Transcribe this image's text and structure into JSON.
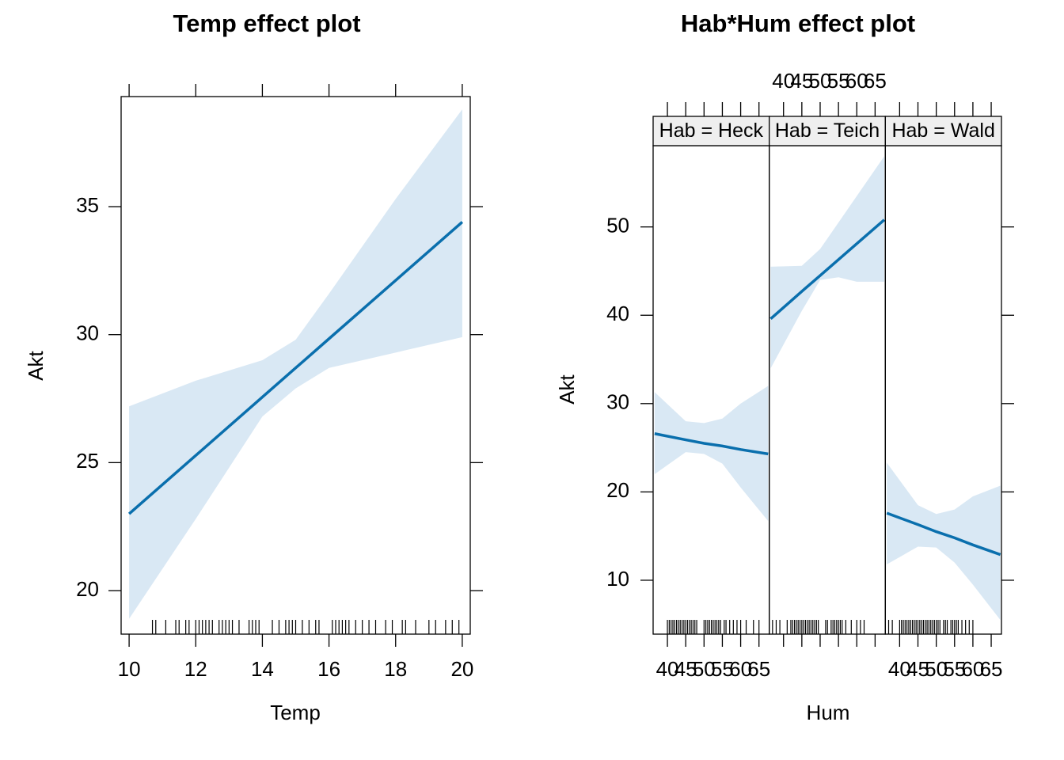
{
  "chart_data": [
    {
      "type": "line",
      "title": "Temp effect plot",
      "x_label": "Temp",
      "y_label": "Akt",
      "x": [
        10,
        12,
        14,
        15,
        16,
        18,
        20
      ],
      "values": [
        23.0,
        25.28,
        27.56,
        28.7,
        29.84,
        32.12,
        34.4
      ],
      "upper": [
        27.2,
        28.2,
        29.0,
        29.8,
        31.6,
        35.3,
        38.8
      ],
      "lower": [
        18.9,
        22.8,
        26.8,
        27.9,
        28.7,
        29.3,
        29.9
      ],
      "rug": [
        10.7,
        10.8,
        11.1,
        11.4,
        11.5,
        11.7,
        11.8,
        12.0,
        12.1,
        12.2,
        12.3,
        12.4,
        12.5,
        12.7,
        12.8,
        12.9,
        13.0,
        13.1,
        13.3,
        13.6,
        13.7,
        13.8,
        13.9,
        14.3,
        14.5,
        14.7,
        14.8,
        14.9,
        15.0,
        15.2,
        15.4,
        15.6,
        15.7,
        16.1,
        16.2,
        16.3,
        16.4,
        16.5,
        16.6,
        16.8,
        17.0,
        17.2,
        17.4,
        17.7,
        17.9,
        18.2,
        18.3,
        18.6,
        19.0,
        19.2,
        19.5,
        19.7,
        19.9
      ],
      "color": "#0a6fad",
      "band_color": "#d9e8f4",
      "xlim": [
        9.76,
        20.24
      ],
      "xticks": [
        10,
        12,
        14,
        16,
        18,
        20
      ],
      "ylim": [
        18.3,
        39.3
      ],
      "yticks": [
        20,
        25,
        30,
        35
      ]
    },
    {
      "type": "line",
      "title": "Hab*Hum effect plot",
      "x_label": "Hum",
      "y_label": "Akt",
      "color": "#0a6fad",
      "band_color": "#d9e8f4",
      "strip_color": "#efefef",
      "xlim": [
        36.1,
        67.8
      ],
      "xticks": [
        40,
        45,
        50,
        55,
        60,
        65
      ],
      "ylim": [
        3.9,
        59.2
      ],
      "yticks": [
        10,
        20,
        30,
        40,
        50
      ],
      "panels": [
        {
          "strip": "Hab = Heck",
          "xaxis_side": "bottom",
          "x": [
            36.5,
            45,
            50,
            55,
            60,
            67.5
          ],
          "values": [
            26.6,
            25.9,
            25.5,
            25.2,
            24.8,
            24.3
          ],
          "upper": [
            31.3,
            28.0,
            27.8,
            28.3,
            30.0,
            32.0
          ],
          "lower": [
            22.0,
            24.5,
            24.3,
            23.2,
            20.5,
            16.7
          ],
          "rug": [
            40,
            40.5,
            41,
            41.5,
            42,
            42.5,
            43,
            43.5,
            44,
            44.5,
            45,
            45.5,
            46,
            46.5,
            47,
            47.5,
            48,
            50,
            50.5,
            51,
            51.5,
            52,
            52.5,
            53,
            53.5,
            54,
            54.5,
            55.5,
            56,
            57,
            58,
            59,
            60,
            61.5,
            63.5,
            65
          ]
        },
        {
          "strip": "Hab = Teich",
          "xaxis_side": "top",
          "x": [
            36.5,
            45,
            50,
            55,
            60,
            67.5
          ],
          "values": [
            39.6,
            42.7,
            44.5,
            46.3,
            48.1,
            50.8
          ],
          "upper": [
            45.5,
            45.6,
            47.5,
            50.5,
            53.5,
            58.0
          ],
          "lower": [
            34.0,
            40.5,
            44.0,
            44.3,
            43.8,
            43.8
          ],
          "rug": [
            37,
            38,
            39,
            41,
            42,
            42.5,
            43,
            43.5,
            44,
            44.5,
            45,
            45.5,
            46,
            46.5,
            47,
            47.5,
            48,
            48.5,
            49,
            49.5,
            51.5,
            52,
            53,
            53.5,
            54,
            54.5,
            55,
            55.5,
            56,
            57,
            58.5,
            60,
            61,
            62
          ]
        },
        {
          "strip": "Hab = Wald",
          "xaxis_side": "bottom",
          "x": [
            36.5,
            45,
            50,
            55,
            60,
            67.5
          ],
          "values": [
            17.6,
            16.3,
            15.5,
            14.8,
            14.0,
            12.9
          ],
          "upper": [
            23.3,
            18.5,
            17.5,
            18.0,
            19.5,
            20.7
          ],
          "lower": [
            11.8,
            13.8,
            13.7,
            12.0,
            9.5,
            5.5
          ],
          "rug": [
            37,
            38,
            40,
            40.5,
            41,
            41.5,
            42,
            42.5,
            43,
            43.5,
            44,
            44.5,
            45,
            45.5,
            46,
            46.5,
            47,
            47.5,
            48,
            48.5,
            49,
            49.5,
            50,
            50.5,
            51,
            52,
            52.5,
            53,
            54,
            54.5,
            55,
            55.5,
            56,
            57,
            58,
            59,
            60
          ]
        }
      ]
    }
  ]
}
